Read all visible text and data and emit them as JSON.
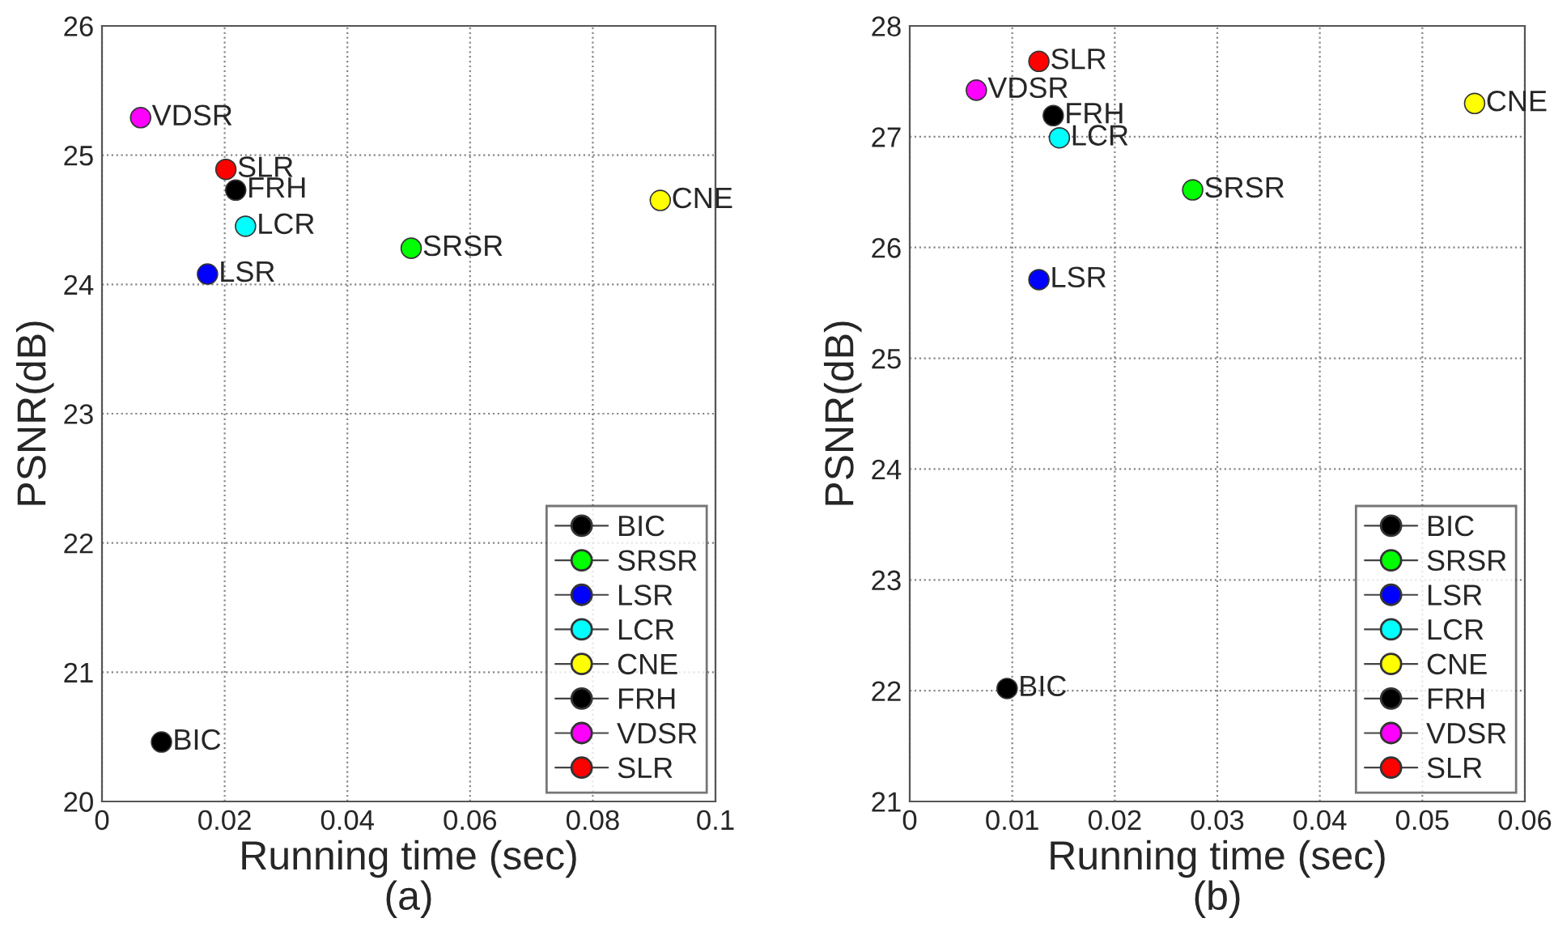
{
  "chart_data": [
    {
      "type": "scatter",
      "xlabel": "Running time (sec)",
      "ylabel": "PSNR(dB)",
      "subtitle": "(a)",
      "xlim": [
        0,
        0.1
      ],
      "xticks": [
        0,
        0.02,
        0.04,
        0.06,
        0.08,
        0.1
      ],
      "ylim": [
        20,
        26
      ],
      "yticks": [
        20,
        21,
        22,
        23,
        24,
        25,
        26
      ],
      "grid": true,
      "legend": "bottom right",
      "marker": "circle",
      "series": [
        {
          "name": "BIC",
          "color": "#000000",
          "x": [
            0.0097
          ],
          "values": [
            20.46
          ]
        },
        {
          "name": "SRSR",
          "color": "#00ff00",
          "x": [
            0.0504
          ],
          "values": [
            24.28
          ]
        },
        {
          "name": "LSR",
          "color": "#0000ff",
          "x": [
            0.0172
          ],
          "values": [
            24.08
          ]
        },
        {
          "name": "LCR",
          "color": "#00ffff",
          "x": [
            0.0234
          ],
          "values": [
            24.45
          ]
        },
        {
          "name": "CNE",
          "color": "#ffff00",
          "x": [
            0.091
          ],
          "values": [
            24.65
          ]
        },
        {
          "name": "FRH",
          "color": "#000000",
          "x": [
            0.0218
          ],
          "values": [
            24.73
          ]
        },
        {
          "name": "VDSR",
          "color": "#ff00ff",
          "x": [
            0.0063
          ],
          "values": [
            25.29
          ]
        },
        {
          "name": "SLR",
          "color": "#ff0000",
          "x": [
            0.0202
          ],
          "values": [
            24.89
          ]
        }
      ],
      "annotations": [
        {
          "text": "BIC",
          "x": 0.0097,
          "y": 20.46
        },
        {
          "text": "SRSR",
          "x": 0.0504,
          "y": 24.28
        },
        {
          "text": "LSR",
          "x": 0.0172,
          "y": 24.08
        },
        {
          "text": "LCR",
          "x": 0.0234,
          "y": 24.45
        },
        {
          "text": "CNE",
          "x": 0.091,
          "y": 24.65
        },
        {
          "text": "FRH",
          "x": 0.0218,
          "y": 24.73
        },
        {
          "text": "VDSR",
          "x": 0.0063,
          "y": 25.29
        },
        {
          "text": "SLR",
          "x": 0.0202,
          "y": 24.89
        }
      ]
    },
    {
      "type": "scatter",
      "xlabel": "Running time (sec)",
      "ylabel": "PSNR(dB)",
      "subtitle": "(b)",
      "xlim": [
        0,
        0.06
      ],
      "xticks": [
        0,
        0.01,
        0.02,
        0.03,
        0.04,
        0.05,
        0.06
      ],
      "ylim": [
        21,
        28
      ],
      "yticks": [
        21,
        22,
        23,
        24,
        25,
        26,
        27,
        28
      ],
      "grid": true,
      "legend": "bottom right",
      "marker": "circle",
      "series": [
        {
          "name": "BIC",
          "color": "#000000",
          "x": [
            0.0095
          ],
          "values": [
            22.02
          ]
        },
        {
          "name": "SRSR",
          "color": "#00ff00",
          "x": [
            0.0276
          ],
          "values": [
            26.52
          ]
        },
        {
          "name": "LSR",
          "color": "#0000ff",
          "x": [
            0.0126
          ],
          "values": [
            25.71
          ]
        },
        {
          "name": "LCR",
          "color": "#00ffff",
          "x": [
            0.0146
          ],
          "values": [
            26.99
          ]
        },
        {
          "name": "CNE",
          "color": "#ffff00",
          "x": [
            0.0551
          ],
          "values": [
            27.3
          ]
        },
        {
          "name": "FRH",
          "color": "#000000",
          "x": [
            0.014
          ],
          "values": [
            27.19
          ]
        },
        {
          "name": "VDSR",
          "color": "#ff00ff",
          "x": [
            0.0065
          ],
          "values": [
            27.42
          ]
        },
        {
          "name": "SLR",
          "color": "#ff0000",
          "x": [
            0.0126
          ],
          "values": [
            27.68
          ]
        }
      ],
      "annotations": [
        {
          "text": "BIC",
          "x": 0.0095,
          "y": 22.02
        },
        {
          "text": "SRSR",
          "x": 0.0276,
          "y": 26.52
        },
        {
          "text": "LSR",
          "x": 0.0126,
          "y": 25.71
        },
        {
          "text": "LCR",
          "x": 0.0146,
          "y": 26.99
        },
        {
          "text": "CNE",
          "x": 0.0551,
          "y": 27.3
        },
        {
          "text": "FRH",
          "x": 0.014,
          "y": 27.19
        },
        {
          "text": "VDSR",
          "x": 0.0065,
          "y": 27.42
        },
        {
          "text": "SLR",
          "x": 0.0126,
          "y": 27.68
        }
      ]
    }
  ]
}
